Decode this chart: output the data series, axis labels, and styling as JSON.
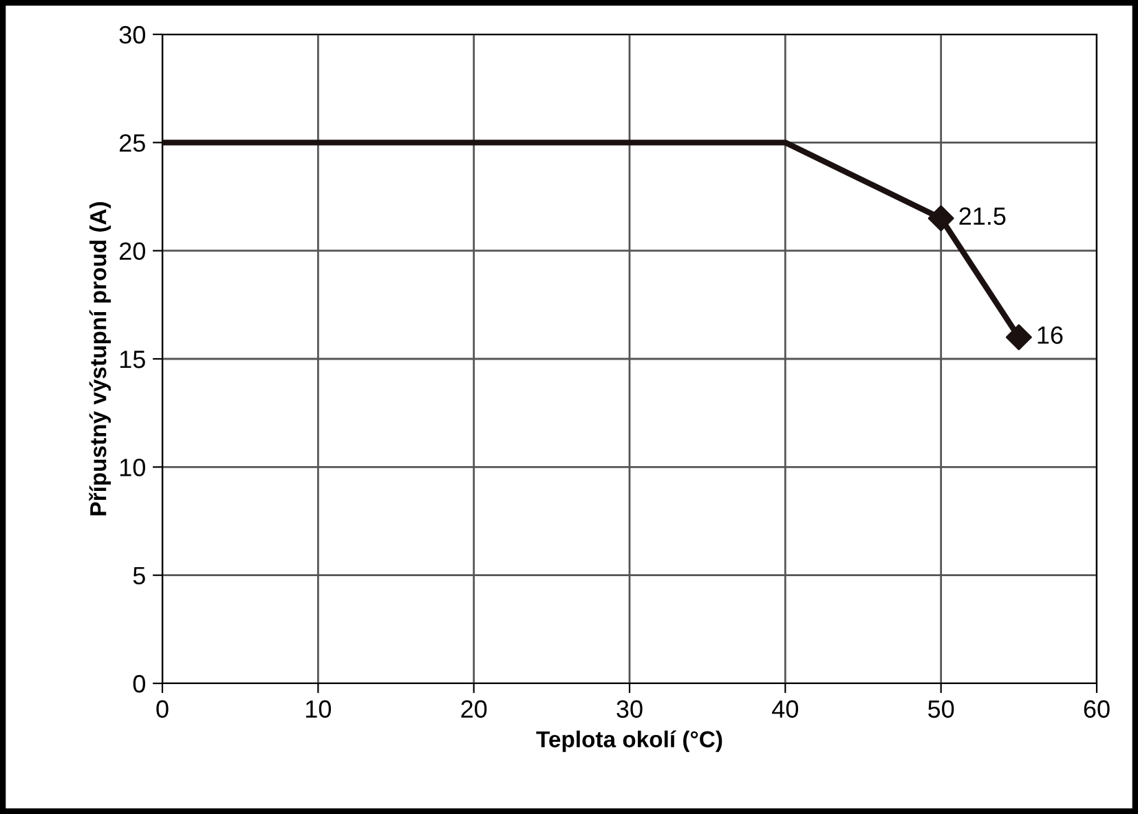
{
  "chart_data": {
    "type": "line",
    "xlabel": "Teplota okolí (°C)",
    "ylabel": "Přípustný výstupní proud (A)",
    "xlim": [
      0,
      60
    ],
    "xticks": [
      0,
      10,
      20,
      30,
      40,
      50,
      60
    ],
    "ylim": [
      0,
      30
    ],
    "yticks": [
      0,
      5,
      10,
      15,
      20,
      25,
      30
    ],
    "grid": true,
    "series": [
      {
        "color": "#1a1110",
        "x": [
          0,
          40,
          50,
          55
        ],
        "values": [
          25,
          25,
          21.5,
          16
        ],
        "marker": "none"
      },
      {
        "type": "scatter",
        "color": "#1a1110",
        "x": [
          50,
          55
        ],
        "values": [
          21.5,
          16
        ],
        "marker": "diamond",
        "data_labels": true
      }
    ]
  }
}
